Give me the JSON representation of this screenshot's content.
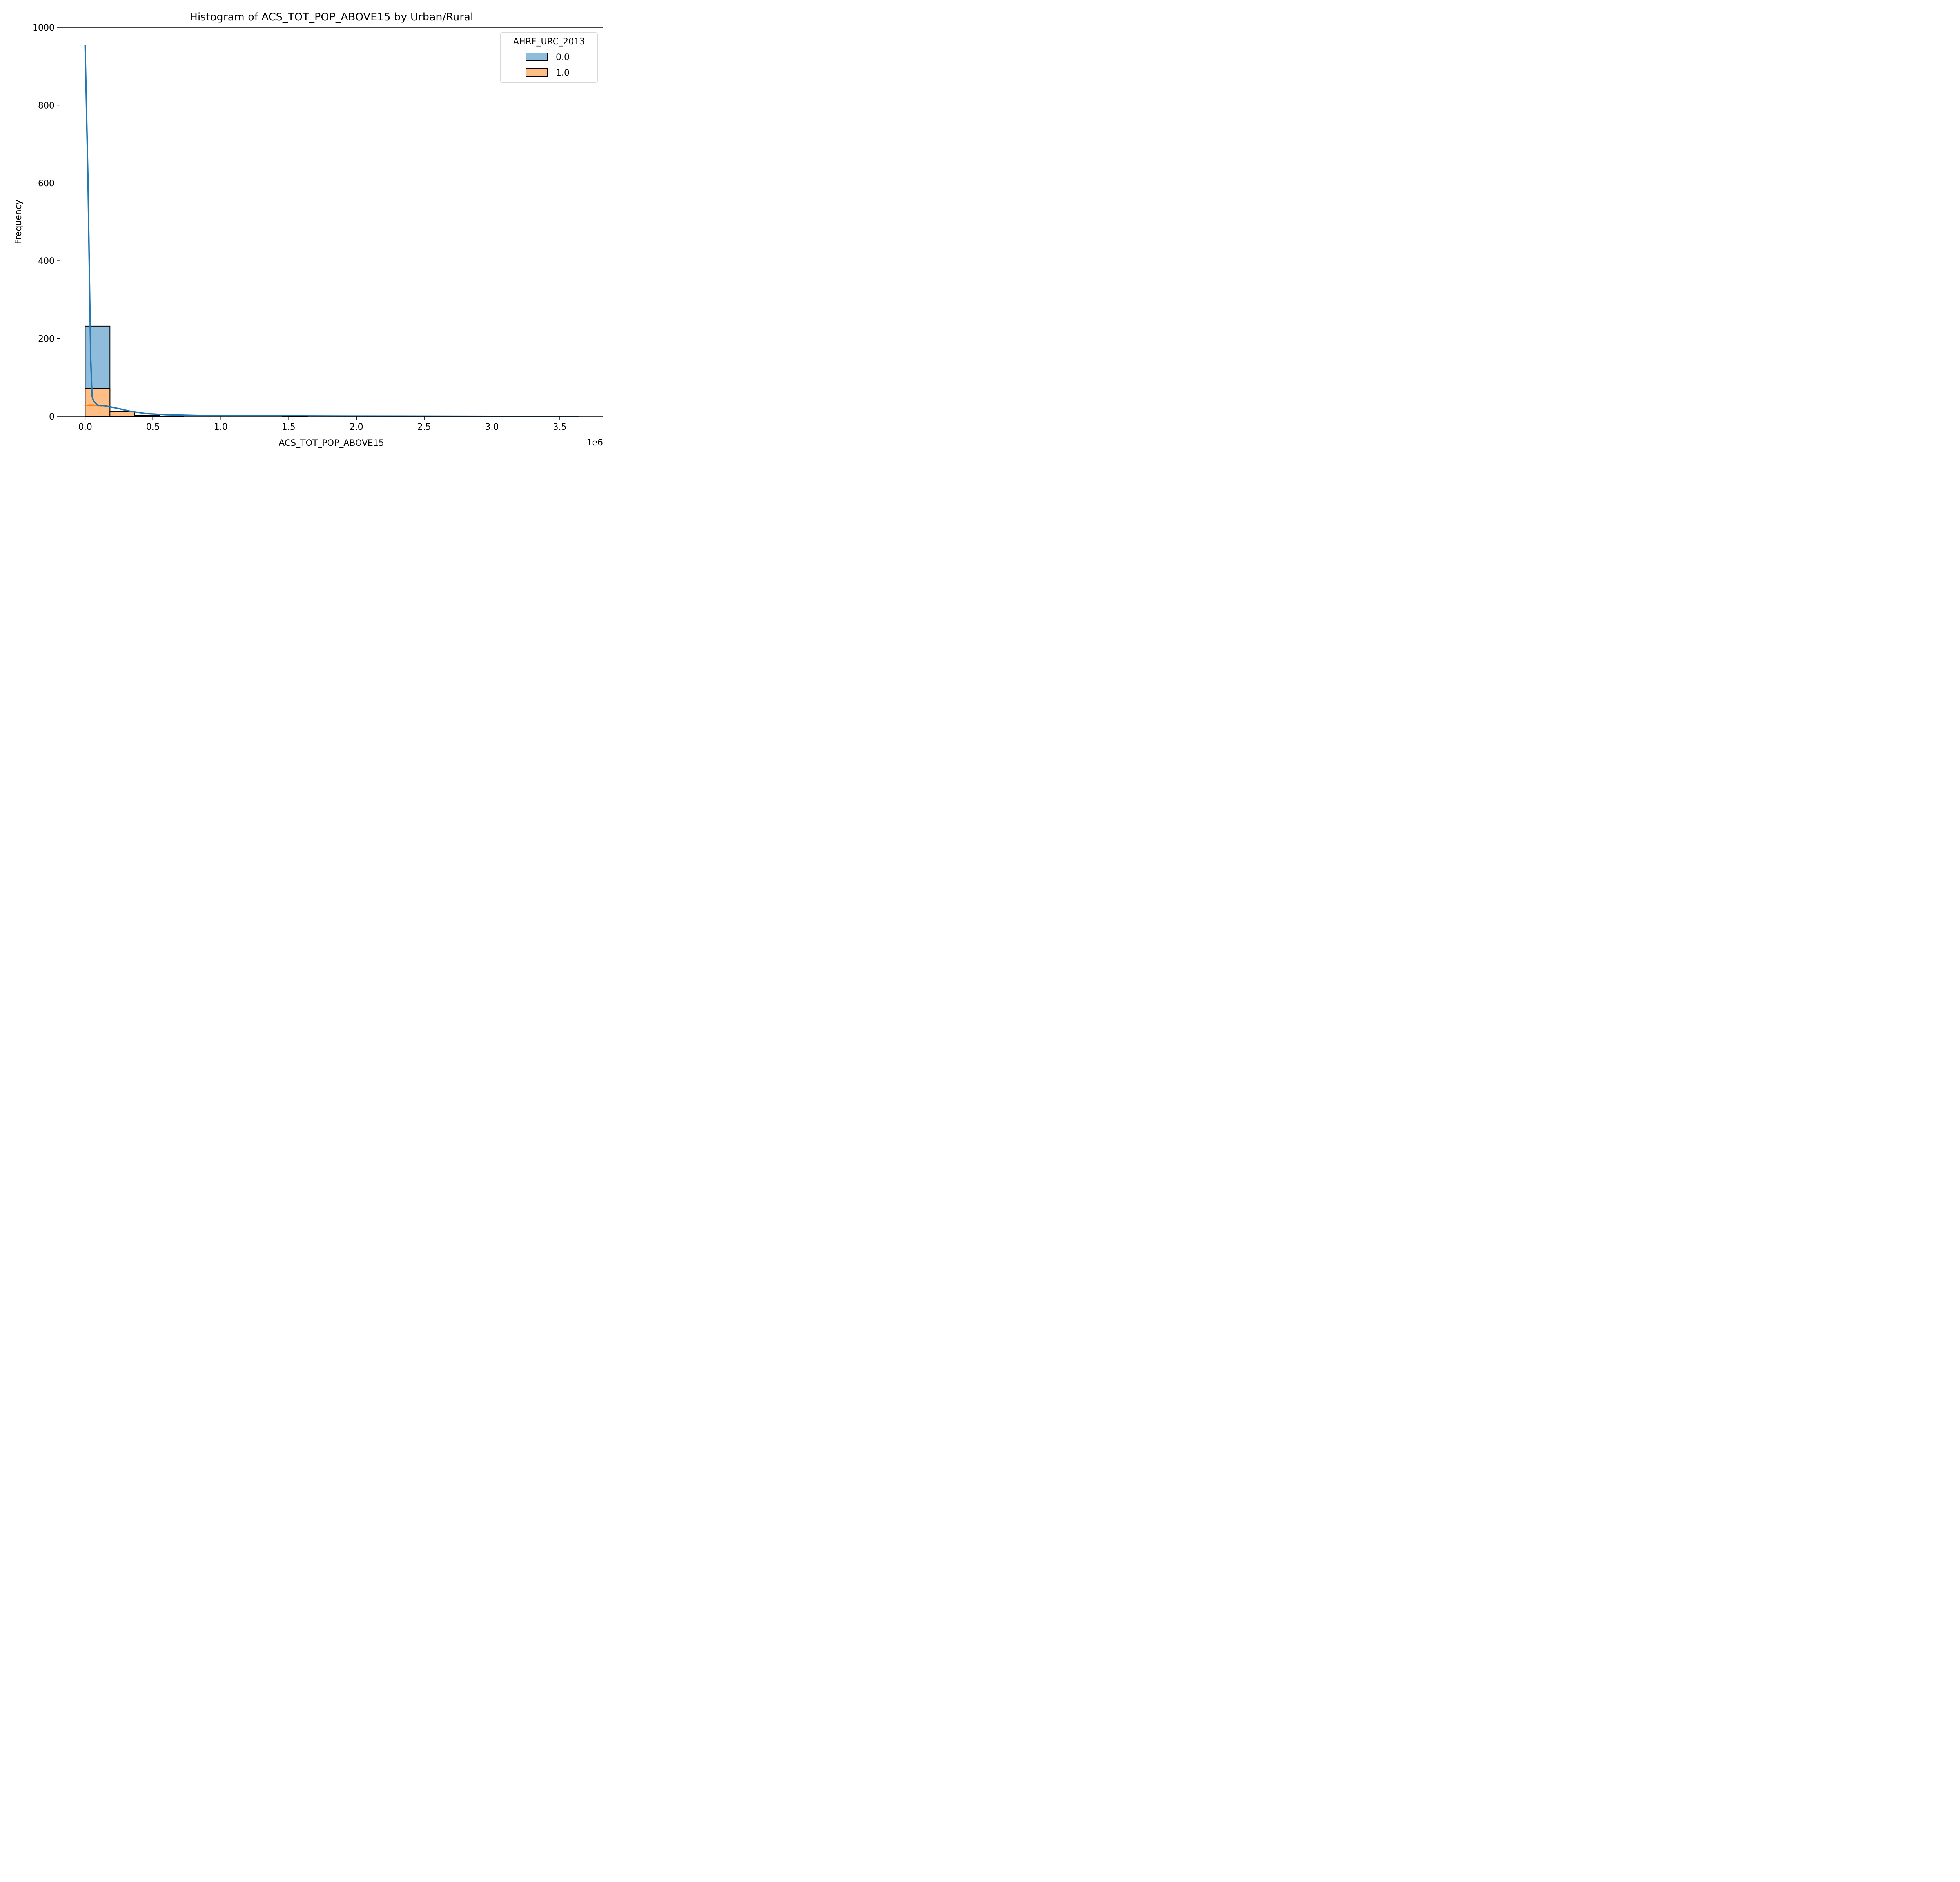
{
  "chart_data": {
    "type": "bar",
    "title": "Histogram of ACS_TOT_POP_ABOVE15 by Urban/Rural",
    "xlabel": "ACS_TOT_POP_ABOVE15",
    "ylabel": "Frequency",
    "x_offset_text": "1e6",
    "xlim": [
      -0.186,
      3.818
    ],
    "ylim": [
      0,
      1000
    ],
    "x_ticks": [
      0.0,
      0.5,
      1.0,
      1.5,
      2.0,
      2.5,
      3.0,
      3.5
    ],
    "x_tick_labels": [
      "0.0",
      "0.5",
      "1.0",
      "1.5",
      "2.0",
      "2.5",
      "3.0",
      "3.5"
    ],
    "y_ticks": [
      0,
      200,
      400,
      600,
      800,
      1000
    ],
    "y_tick_labels": [
      "0",
      "200",
      "400",
      "600",
      "800",
      "1000"
    ],
    "grid": false,
    "stacking": "layered",
    "bin_edges": [
      0.0,
      0.182,
      0.364,
      0.546,
      0.728,
      0.91,
      1.092,
      1.274,
      1.456,
      1.638,
      1.82,
      2.002,
      2.184,
      2.366,
      2.548,
      2.73,
      2.912,
      3.094,
      3.276,
      3.458,
      3.64
    ],
    "series": [
      {
        "name": "0.0",
        "color": "#1f77b4",
        "fill": "#8fbcdb",
        "counts": [
          232,
          12,
          3,
          1,
          0,
          0,
          0,
          0,
          1,
          0,
          0,
          0,
          0,
          0,
          0,
          0,
          0,
          0,
          0,
          0
        ],
        "kde": {
          "x": [
            0.0,
            0.02,
            0.04,
            0.05,
            0.06,
            0.09,
            0.15,
            0.25,
            0.35,
            0.45,
            0.6,
            0.8,
            1.0,
            1.3,
            1.6,
            2.0,
            2.5,
            3.0,
            3.64
          ],
          "y": [
            953,
            620,
            150,
            52,
            40,
            29,
            27,
            20,
            12,
            7,
            4,
            2.5,
            1.6,
            1.2,
            1.2,
            0.9,
            0.6,
            0.3,
            0.2
          ]
        }
      },
      {
        "name": "1.0",
        "color": "#ff7f0e",
        "fill": "#ffbe86",
        "counts": [
          72,
          12,
          3,
          0,
          0,
          0,
          0,
          0,
          0,
          0,
          0,
          0,
          0,
          0,
          0,
          0,
          0,
          0,
          0,
          0
        ],
        "kde": {
          "x": [
            0.0,
            0.03,
            0.06,
            0.09,
            0.12
          ],
          "y": [
            28,
            29,
            29,
            28,
            27
          ]
        }
      }
    ],
    "legend": {
      "title": "AHRF_URC_2013",
      "position": "upper right",
      "entries": [
        "0.0",
        "1.0"
      ]
    }
  }
}
